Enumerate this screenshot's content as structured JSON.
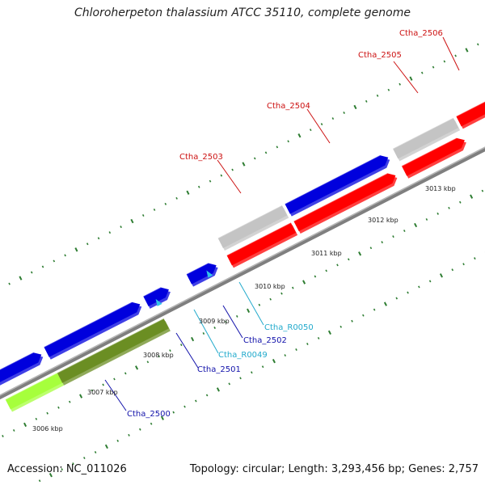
{
  "title": "Chloroherpeton thalassium ATCC 35110, complete genome",
  "accession": "Accession: NC_011026",
  "summary": "Topology: circular; Length: 3,293,456 bp; Genes: 2,757",
  "colors": {
    "backbone": "#8c8c8c",
    "tick": "#2e7d32",
    "gene_red": "#ff0000",
    "gene_blue": "#0000dd",
    "gene_gray": "#c4c4c4",
    "gene_olive": "#6b8e23",
    "gene_lime": "#a6ff3c",
    "rna_cyan": "#33c4e8",
    "label_red": "#cc1111",
    "label_blue": "#1111aa",
    "label_cyan": "#22aacc"
  },
  "scale_labels": [
    "3006 kbp",
    "3007 kbp",
    "3008 kbp",
    "3009 kbp",
    "3010 kbp",
    "3011 kbp",
    "3012 kbp",
    "3013 kbp"
  ],
  "feature_labels": {
    "ctha_2500": "Ctha_2500",
    "ctha_2501": "Ctha_2501",
    "ctha_2502": "Ctha_2502",
    "ctha_2503": "Ctha_2503",
    "ctha_2504": "Ctha_2504",
    "ctha_2505": "Ctha_2505",
    "ctha_2506": "Ctha_2506",
    "ctha_r0049": "Ctha_R0049",
    "ctha_r0050": "Ctha_R0050"
  }
}
